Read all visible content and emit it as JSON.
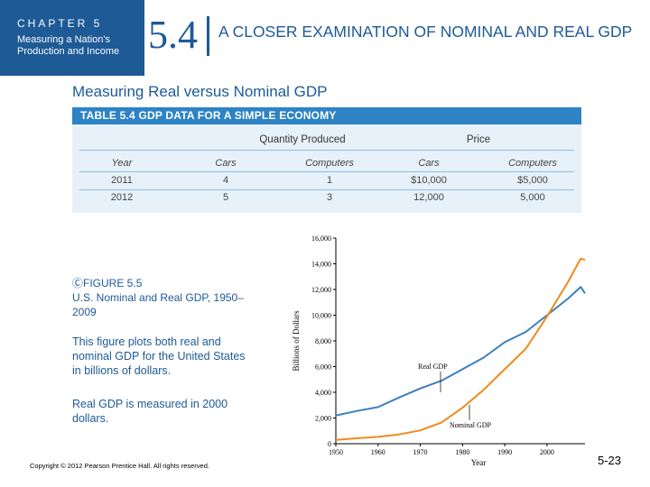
{
  "header": {
    "chapter_label": "CHAPTER 5",
    "chapter_subtitle": "Measuring a Nation's Production and Income",
    "section_number": "5.4",
    "section_title": "A CLOSER EXAMINATION OF NOMINAL AND REAL GDP"
  },
  "subheading": "Measuring Real versus Nominal GDP",
  "table": {
    "title": "TABLE 5.4  GDP DATA FOR A SIMPLE ECONOMY",
    "group_quantity": "Quantity Produced",
    "group_price": "Price",
    "columns": [
      "Year",
      "Cars",
      "Computers",
      "Cars",
      "Computers"
    ],
    "rows": [
      [
        "2011",
        "4",
        "1",
        "$10,000",
        "$5,000"
      ],
      [
        "2012",
        "5",
        "3",
        "12,000",
        "5,000"
      ]
    ]
  },
  "figure": {
    "title": "FIGURE 5.5",
    "subtitle": "U.S. Nominal and Real GDP, 1950–2009",
    "description": "This figure plots both real and nominal GDP for the United States in billions of dollars.",
    "note": "Real GDP is measured in 2000 dollars."
  },
  "footer": {
    "copyright": "Copyright © 2012 Pearson Prentice Hall. All rights reserved.",
    "page_number": "5-23"
  },
  "chart_data": {
    "type": "line",
    "title": "",
    "xlabel": "Year",
    "ylabel": "Billions of Dollars",
    "xlim": [
      1950,
      2009
    ],
    "ylim": [
      0,
      16000
    ],
    "x_ticks": [
      "1950",
      "1960",
      "1970",
      "1980",
      "1990",
      "2000"
    ],
    "y_ticks": [
      "0",
      "2,000",
      "4,000",
      "6,000",
      "8,000",
      "10,000",
      "12,000",
      "14,000",
      "16,000"
    ],
    "x": [
      1950,
      1955,
      1960,
      1965,
      1970,
      1975,
      1980,
      1985,
      1990,
      1995,
      2000,
      2005,
      2007,
      2008,
      2009
    ],
    "series": [
      {
        "name": "Real GDP",
        "color": "#3a7fc1",
        "values": [
          2200,
          2550,
          2850,
          3600,
          4300,
          4900,
          5800,
          6700,
          7900,
          8700,
          10000,
          11300,
          11900,
          12200,
          11700
        ]
      },
      {
        "name": "Nominal GDP",
        "color": "#f08a1c",
        "values": [
          300,
          420,
          530,
          720,
          1040,
          1640,
          2800,
          4200,
          5800,
          7400,
          9900,
          12600,
          13800,
          14400,
          14300
        ]
      }
    ],
    "annotations": [
      "Real GDP",
      "Nominal GDP"
    ]
  }
}
